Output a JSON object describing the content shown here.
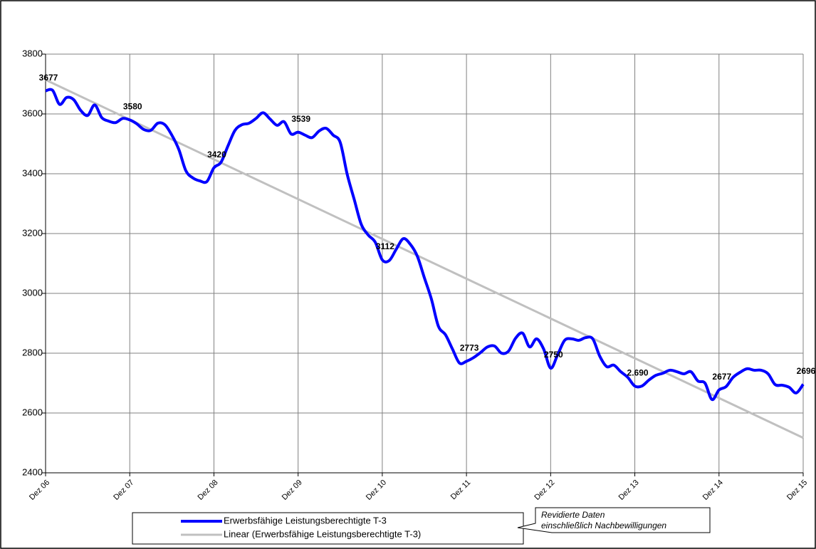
{
  "chart_data": {
    "type": "line",
    "categories": [
      "Dez 06",
      null,
      null,
      null,
      null,
      null,
      null,
      null,
      null,
      null,
      null,
      null,
      "Dez 07",
      null,
      null,
      null,
      null,
      null,
      null,
      null,
      null,
      null,
      null,
      null,
      "Dez 08",
      null,
      null,
      null,
      null,
      null,
      null,
      null,
      null,
      null,
      null,
      null,
      "Dez 09",
      null,
      null,
      null,
      null,
      null,
      null,
      null,
      null,
      null,
      null,
      null,
      "Dez 10",
      null,
      null,
      null,
      null,
      null,
      null,
      null,
      null,
      null,
      null,
      null,
      "Dez 11",
      null,
      null,
      null,
      null,
      null,
      null,
      null,
      null,
      null,
      null,
      null,
      "Dez 12",
      null,
      null,
      null,
      null,
      null,
      null,
      null,
      null,
      null,
      null,
      null,
      "Dez 13",
      null,
      null,
      null,
      null,
      null,
      null,
      null,
      null,
      null,
      null,
      null,
      "Dez 14",
      null,
      null,
      null,
      null,
      null,
      null,
      null,
      null,
      null,
      null,
      null,
      "Dez 15"
    ],
    "series": [
      {
        "name": "Erwerbsfähige Leistungsberechtigte T-3",
        "color": "#0000ff",
        "values": [
          3677,
          3679,
          3632,
          3655,
          3648,
          3612,
          3595,
          3630,
          3588,
          3576,
          3571,
          3585,
          3580,
          3567,
          3548,
          3545,
          3569,
          3564,
          3529,
          3481,
          3410,
          3386,
          3376,
          3374,
          3420,
          3438,
          3493,
          3545,
          3564,
          3569,
          3585,
          3604,
          3583,
          3562,
          3574,
          3533,
          3539,
          3529,
          3521,
          3543,
          3552,
          3529,
          3505,
          3398,
          3314,
          3231,
          3195,
          3171,
          3112,
          3110,
          3148,
          3183,
          3164,
          3124,
          3052,
          2981,
          2890,
          2862,
          2814,
          2767,
          2773,
          2785,
          2802,
          2821,
          2824,
          2800,
          2807,
          2850,
          2867,
          2821,
          2848,
          2814,
          2750,
          2795,
          2843,
          2848,
          2843,
          2852,
          2848,
          2790,
          2755,
          2760,
          2738,
          2719,
          2690,
          2690,
          2710,
          2726,
          2733,
          2743,
          2738,
          2731,
          2738,
          2707,
          2700,
          2645,
          2677,
          2688,
          2719,
          2736,
          2748,
          2743,
          2743,
          2731,
          2695,
          2693,
          2686,
          2667,
          2696
        ],
        "value_labels": [
          "3677",
          null,
          null,
          null,
          null,
          null,
          null,
          null,
          null,
          null,
          null,
          null,
          "3580",
          null,
          null,
          null,
          null,
          null,
          null,
          null,
          null,
          null,
          null,
          null,
          "3420",
          null,
          null,
          null,
          null,
          null,
          null,
          null,
          null,
          null,
          null,
          null,
          "3539",
          null,
          null,
          null,
          null,
          null,
          null,
          null,
          null,
          null,
          null,
          null,
          "3112",
          null,
          null,
          null,
          null,
          null,
          null,
          null,
          null,
          null,
          null,
          null,
          "2773",
          null,
          null,
          null,
          null,
          null,
          null,
          null,
          null,
          null,
          null,
          null,
          "2750",
          null,
          null,
          null,
          null,
          null,
          null,
          null,
          null,
          null,
          null,
          null,
          "2.690",
          null,
          null,
          null,
          null,
          null,
          null,
          null,
          null,
          null,
          null,
          null,
          "2677",
          null,
          null,
          null,
          null,
          null,
          null,
          null,
          null,
          null,
          null,
          null,
          "2696"
        ]
      }
    ],
    "trend": {
      "name": "Linear (Erwerbsfähige Leistungsberechtigte T-3)",
      "color": "#c0c0c0",
      "from": 3714,
      "to": 2517
    },
    "ylim": [
      2400,
      3800
    ],
    "yticks": [
      2400,
      2600,
      2800,
      3000,
      3200,
      3400,
      3600,
      3800
    ],
    "grid": true,
    "legend": "bottom",
    "annotation": [
      "Revidierte Daten",
      "einschließlich  Nachbewilligungen"
    ]
  }
}
